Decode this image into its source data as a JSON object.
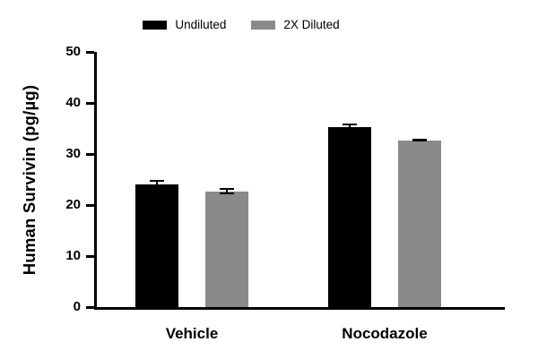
{
  "chart_data": {
    "type": "bar",
    "title": "",
    "xlabel": "",
    "ylabel": "Human Survivin (pg/µg)",
    "ylim": [
      0,
      50
    ],
    "yticks": [
      0,
      10,
      20,
      30,
      40,
      50
    ],
    "grid": false,
    "legend_position": "top-center",
    "categories": [
      "Vehicle",
      "Nocodazole"
    ],
    "series": [
      {
        "name": "Undiluted",
        "color": "#000000",
        "values": [
          24.0,
          35.2
        ],
        "errors": [
          0.9,
          0.7
        ]
      },
      {
        "name": "2X Diluted",
        "color": "#8a8a8a",
        "values": [
          22.7,
          32.7
        ],
        "errors": [
          0.6,
          0.3
        ]
      }
    ]
  },
  "colors": {
    "axis": "#000000",
    "background": "#ffffff",
    "error_bar": "#000000"
  }
}
